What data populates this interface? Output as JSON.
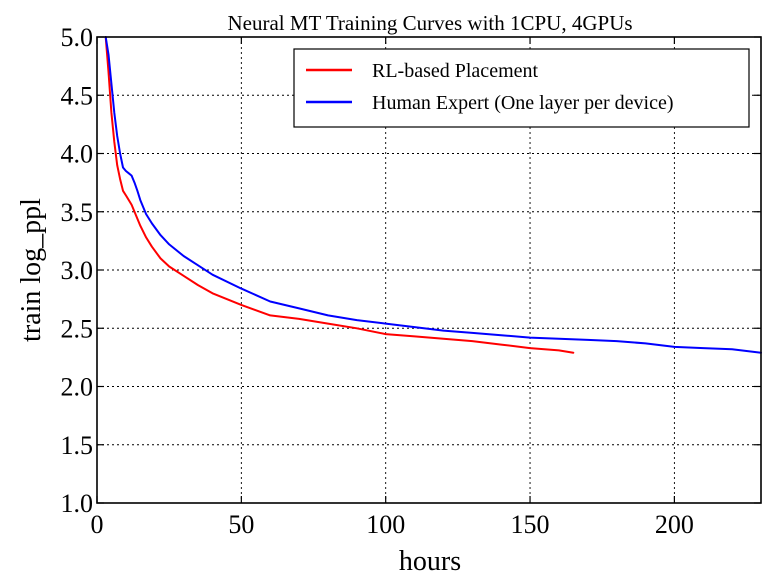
{
  "chart_data": {
    "type": "line",
    "title": "Neural MT Training Curves with 1CPU, 4GPUs",
    "xlabel": "hours",
    "ylabel": "train log_ppl",
    "xlim": [
      0,
      230
    ],
    "ylim": [
      1.0,
      5.0
    ],
    "xticks": [
      0,
      50,
      100,
      150,
      200
    ],
    "xtick_labels": [
      "0",
      "50",
      "100",
      "150",
      "200"
    ],
    "yticks": [
      1.0,
      1.5,
      2.0,
      2.5,
      3.0,
      3.5,
      4.0,
      4.5,
      5.0
    ],
    "ytick_labels": [
      "1.0",
      "1.5",
      "2.0",
      "2.5",
      "3.0",
      "3.5",
      "4.0",
      "4.5",
      "5.0"
    ],
    "grid": true,
    "legend_position": "top-right",
    "series": [
      {
        "name": "RL-based Placement",
        "color": "#ff0000",
        "x": [
          3,
          4,
          5,
          6,
          7,
          8,
          9,
          10,
          11,
          12,
          13,
          14,
          15,
          17,
          19,
          22,
          25,
          30,
          35,
          40,
          50,
          60,
          70,
          80,
          90,
          100,
          110,
          120,
          130,
          140,
          150,
          160,
          165
        ],
        "y": [
          5.0,
          4.7,
          4.35,
          4.1,
          3.9,
          3.78,
          3.68,
          3.64,
          3.6,
          3.56,
          3.5,
          3.44,
          3.38,
          3.28,
          3.2,
          3.1,
          3.03,
          2.95,
          2.87,
          2.8,
          2.7,
          2.61,
          2.58,
          2.54,
          2.5,
          2.45,
          2.43,
          2.41,
          2.39,
          2.36,
          2.33,
          2.31,
          2.29
        ]
      },
      {
        "name": "Human Expert (One layer per device)",
        "color": "#0000ff",
        "x": [
          3,
          4,
          5,
          6,
          7,
          8,
          9,
          10,
          11,
          12,
          13,
          14,
          15,
          17,
          19,
          22,
          25,
          30,
          35,
          40,
          50,
          60,
          70,
          80,
          90,
          100,
          110,
          120,
          130,
          140,
          150,
          160,
          170,
          180,
          190,
          200,
          210,
          220,
          230
        ],
        "y": [
          5.0,
          4.85,
          4.6,
          4.35,
          4.15,
          4.0,
          3.88,
          3.85,
          3.83,
          3.81,
          3.75,
          3.68,
          3.6,
          3.48,
          3.4,
          3.3,
          3.22,
          3.12,
          3.04,
          2.96,
          2.84,
          2.73,
          2.67,
          2.61,
          2.57,
          2.54,
          2.51,
          2.48,
          2.46,
          2.44,
          2.42,
          2.41,
          2.4,
          2.39,
          2.37,
          2.34,
          2.33,
          2.32,
          2.29
        ]
      }
    ]
  }
}
